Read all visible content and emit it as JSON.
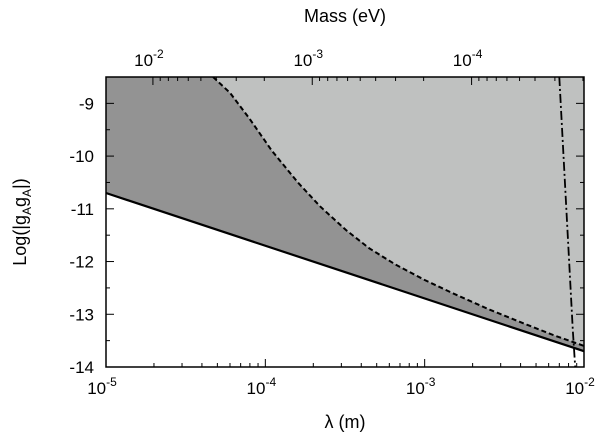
{
  "chart_data": {
    "type": "area",
    "xlabel": "λ  (m)",
    "ylabel_parts": [
      "Log(|g",
      "A",
      "g",
      "A",
      "|)"
    ],
    "top_xlabel": "Mass (eV)",
    "x_scale": "log",
    "xlim": [
      1e-05,
      0.01
    ],
    "ylim": [
      -14,
      -8.5
    ],
    "x_ticks": [
      {
        "value": 1e-05,
        "base": "10",
        "exp": "-5"
      },
      {
        "value": 0.0001,
        "base": "10",
        "exp": "-4"
      },
      {
        "value": 0.001,
        "base": "10",
        "exp": "-3"
      },
      {
        "value": 0.01,
        "base": "10",
        "exp": "-2"
      }
    ],
    "top_ticks": [
      {
        "value": 0.01,
        "base": "10",
        "exp": "-2"
      },
      {
        "value": 0.001,
        "base": "10",
        "exp": "-3"
      },
      {
        "value": 0.0001,
        "base": "10",
        "exp": "-4"
      }
    ],
    "mass_scale_ev_m": 1.97e-07,
    "y_ticks": [
      {
        "value": -9,
        "label": "-9"
      },
      {
        "value": -10,
        "label": "-10"
      },
      {
        "value": -11,
        "label": "-11"
      },
      {
        "value": -12,
        "label": "-12"
      },
      {
        "value": -13,
        "label": "-13"
      },
      {
        "value": -14,
        "label": "-14"
      }
    ],
    "series": [
      {
        "style": "solid",
        "x": [
          1e-05,
          0.01
        ],
        "y": [
          -10.7,
          -13.7
        ]
      },
      {
        "style": "dashed",
        "x": [
          4.7e-05,
          6e-05,
          8e-05,
          0.00011,
          0.00016,
          0.00022,
          0.00032,
          0.00045,
          0.00065,
          0.001,
          0.0015,
          0.0025,
          0.004,
          0.0065,
          0.01
        ],
        "y": [
          -8.5,
          -8.8,
          -9.3,
          -9.9,
          -10.5,
          -10.95,
          -11.4,
          -11.75,
          -12.05,
          -12.35,
          -12.6,
          -12.9,
          -13.15,
          -13.4,
          -13.6
        ]
      },
      {
        "style": "dashdot",
        "x": [
          0.007,
          0.0085,
          0.0088
        ],
        "y": [
          -8.5,
          -13.3,
          -14
        ]
      }
    ],
    "regions": [
      {
        "name": "excluded-dark",
        "color": "#939393"
      },
      {
        "name": "excluded-light",
        "color": "#bfc1c0"
      }
    ]
  }
}
